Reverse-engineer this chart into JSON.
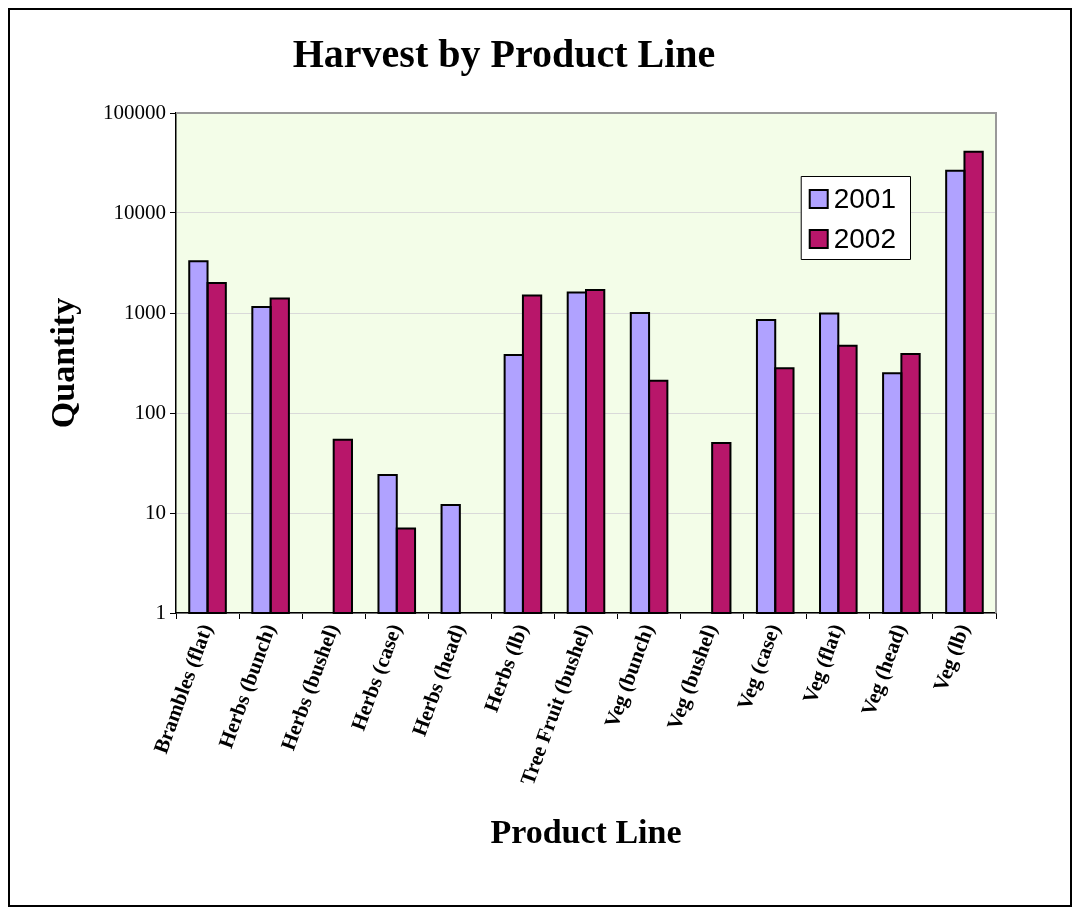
{
  "chart_data": {
    "type": "bar",
    "title": "Harvest by Product Line",
    "xlabel": "Product Line",
    "ylabel": "Quantity",
    "categories": [
      "Brambles (flat)",
      "Herbs (bunch)",
      "Herbs (bushel)",
      "Herbs (case)",
      "Herbs (head)",
      "Herbs (lb)",
      "Tree Fruit (bushel)",
      "Veg (bunch)",
      "Veg (bushel)",
      "Veg (case)",
      "Veg (flat)",
      "Veg (head)",
      "Veg (lb)"
    ],
    "series": [
      {
        "name": "2001",
        "color": "#b0a2ff",
        "values": [
          3300,
          1150,
          null,
          24,
          12,
          380,
          1600,
          1000,
          null,
          850,
          990,
          250,
          26500
        ]
      },
      {
        "name": "2002",
        "color": "#b8166a",
        "values": [
          2000,
          1400,
          54,
          7,
          null,
          1500,
          1700,
          210,
          50,
          280,
          470,
          390,
          41000
        ]
      }
    ],
    "ylim": [
      1,
      100000
    ],
    "yticks": [
      1,
      10,
      100,
      1000,
      10000,
      100000
    ],
    "log": true,
    "grid": "y",
    "legend": "top right"
  }
}
